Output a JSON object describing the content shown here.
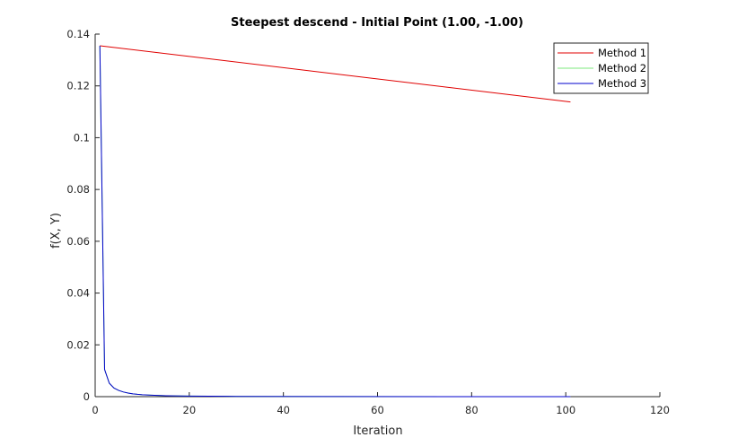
{
  "chart_data": {
    "type": "line",
    "title": "Steepest descend - Initial Point (1.00, -1.00)",
    "xlabel": "Iteration",
    "ylabel": "f(X, Y)",
    "xlim": [
      0,
      120
    ],
    "ylim": [
      0,
      0.14
    ],
    "xticks": [
      0,
      20,
      40,
      60,
      80,
      100,
      120
    ],
    "yticks": [
      0,
      0.02,
      0.04,
      0.06,
      0.08,
      0.1,
      0.12,
      0.14
    ],
    "xtick_labels": [
      "0",
      "20",
      "40",
      "60",
      "80",
      "100",
      "120"
    ],
    "ytick_labels": [
      "0",
      "0.02",
      "0.04",
      "0.06",
      "0.08",
      "0.1",
      "0.12",
      "0.14"
    ],
    "grid": false,
    "box": false,
    "legend_position": "top-right",
    "series": [
      {
        "name": "Method 1",
        "color": "#e00000",
        "x": [
          1,
          101
        ],
        "y": [
          0.1355,
          0.1138
        ]
      },
      {
        "name": "Method 2",
        "color": "#7de87d",
        "x": [
          1,
          2,
          3,
          4,
          5,
          6,
          7,
          8,
          9,
          10,
          12,
          15,
          20,
          30,
          50,
          75,
          101
        ],
        "y": [
          0.1355,
          0.0105,
          0.0052,
          0.0033,
          0.0024,
          0.0018,
          0.0014,
          0.0011,
          0.0009,
          0.00075,
          0.00055,
          0.00035,
          0.0002,
          0.0001,
          4e-05,
          2e-05,
          1e-05
        ]
      },
      {
        "name": "Method 3",
        "color": "#0000cc",
        "x": [
          1,
          2,
          3,
          4,
          5,
          6,
          7,
          8,
          9,
          10,
          12,
          15,
          20,
          30,
          50,
          75,
          101
        ],
        "y": [
          0.1355,
          0.0105,
          0.0052,
          0.0033,
          0.0024,
          0.0018,
          0.0014,
          0.0011,
          0.0009,
          0.00075,
          0.00055,
          0.00035,
          0.0002,
          0.0001,
          4e-05,
          2e-05,
          1e-05
        ]
      }
    ]
  }
}
